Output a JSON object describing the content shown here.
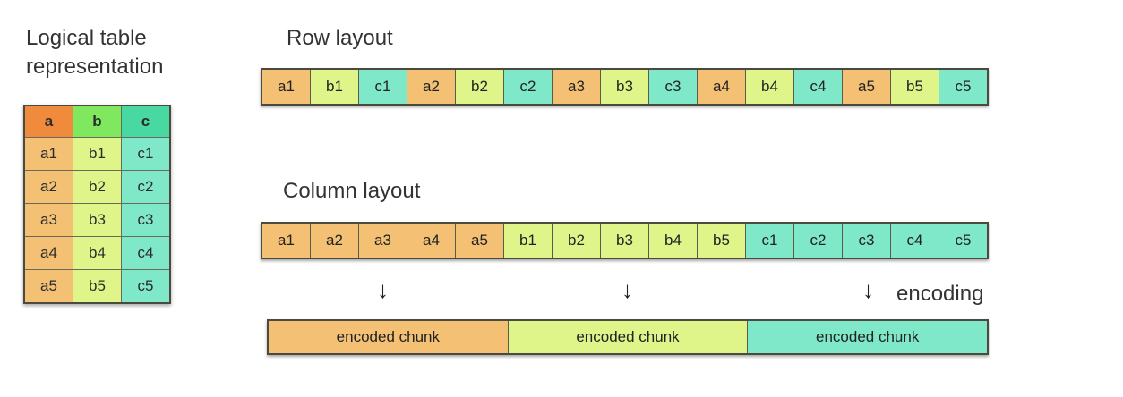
{
  "logical": {
    "title_line1": "Logical table",
    "title_line2": "representation",
    "headers": [
      "a",
      "b",
      "c"
    ],
    "rows": [
      [
        "a1",
        "b1",
        "c1"
      ],
      [
        "a2",
        "b2",
        "c2"
      ],
      [
        "a3",
        "b3",
        "c3"
      ],
      [
        "a4",
        "b4",
        "c4"
      ],
      [
        "a5",
        "b5",
        "c5"
      ]
    ]
  },
  "row_layout": {
    "title": "Row layout",
    "cells": [
      "a1",
      "b1",
      "c1",
      "a2",
      "b2",
      "c2",
      "a3",
      "b3",
      "c3",
      "a4",
      "b4",
      "c4",
      "a5",
      "b5",
      "c5"
    ]
  },
  "column_layout": {
    "title": "Column layout",
    "cells": [
      "a1",
      "a2",
      "a3",
      "a4",
      "a5",
      "b1",
      "b2",
      "b3",
      "b4",
      "b5",
      "c1",
      "c2",
      "c3",
      "c4",
      "c5"
    ]
  },
  "encoding": {
    "label": "encoding",
    "arrow": "↓",
    "chunks": [
      "encoded chunk",
      "encoded chunk",
      "encoded chunk"
    ]
  },
  "colors": {
    "a": "#f3c074",
    "b": "#dff58a",
    "c": "#7fe8c8",
    "a_header": "#f08a3c",
    "b_header": "#7fe85e",
    "c_header": "#48d9a2"
  }
}
